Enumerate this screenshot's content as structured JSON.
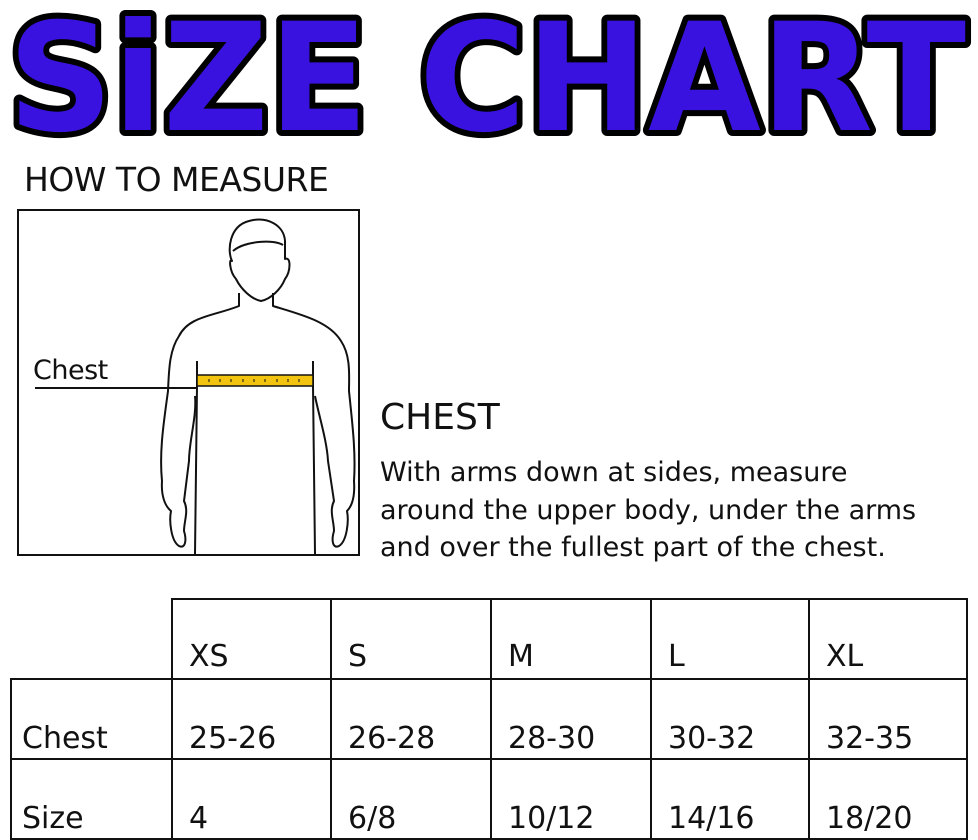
{
  "title": "SiZE CHART",
  "title_color": "#3a12e0",
  "how_to_measure": "HOW TO MEASURE",
  "figure": {
    "label": "Chest",
    "tape_color": "#f2c40f"
  },
  "chest": {
    "heading": "CHEST",
    "lines": [
      "With arms down at sides, measure",
      "around the upper body, under the arms",
      "and over the fullest part of the chest."
    ]
  },
  "table": {
    "sizes": [
      "XS",
      "S",
      "M",
      "L",
      "XL"
    ],
    "rows": [
      {
        "label": "Chest",
        "values": [
          "25-26",
          "26-28",
          "28-30",
          "30-32",
          "32-35"
        ]
      },
      {
        "label": "Size",
        "values": [
          "4",
          "6/8",
          "10/12",
          "14/16",
          "18/20"
        ]
      }
    ]
  }
}
